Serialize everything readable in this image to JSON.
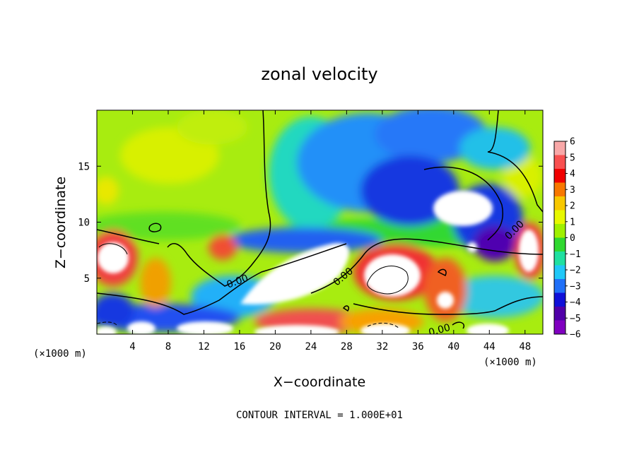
{
  "chart_data": {
    "type": "heatmap",
    "title": "zonal velocity",
    "xlabel": "X−coordinate",
    "ylabel": "Z−coordinate",
    "x_unit_left": "(×1000 m)",
    "x_unit_right": "(×1000 m)",
    "footer": "CONTOUR INTERVAL = 1.000E+01",
    "xlim": [
      0,
      50
    ],
    "ylim": [
      0,
      20
    ],
    "xticks": [
      4,
      8,
      12,
      16,
      20,
      24,
      28,
      32,
      36,
      40,
      44,
      48
    ],
    "yticks": [
      5,
      10,
      15
    ],
    "colorbar": {
      "ticks": [
        "6",
        "5",
        "4",
        "3",
        "2",
        "1",
        "0",
        "−1",
        "−2",
        "−3",
        "−4",
        "−5",
        "−6"
      ],
      "colors": [
        "#f8a8a8",
        "#f85050",
        "#f00000",
        "#f87800",
        "#f8c800",
        "#e8f800",
        "#a0f000",
        "#30d830",
        "#20e0a0",
        "#20c8f8",
        "#2070f8",
        "#1010d8",
        "#5000a8",
        "#8000c0"
      ]
    },
    "contour_labels": [
      "0.00",
      "0.00",
      "0.00",
      "0.00"
    ]
  }
}
